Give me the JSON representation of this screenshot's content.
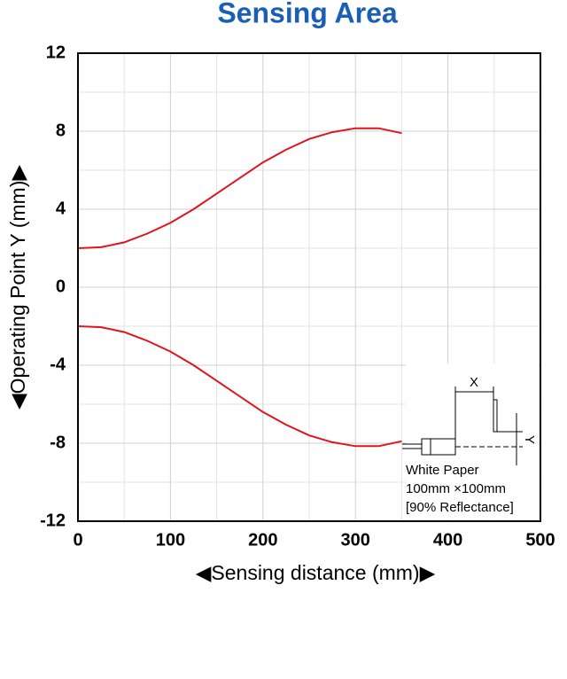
{
  "chart_data": {
    "type": "line",
    "title": "Sensing Area",
    "x_label": "◀Sensing distance (mm)▶",
    "y_label": "◀Operating Point Y (mm)▶",
    "x": [
      0,
      25,
      50,
      75,
      100,
      125,
      150,
      175,
      200,
      225,
      250,
      275,
      300,
      325,
      350
    ],
    "series": [
      {
        "color": "#e0141e",
        "values": [
          2.0,
          2.05,
          2.3,
          2.75,
          3.3,
          4.0,
          4.8,
          5.6,
          6.4,
          7.05,
          7.6,
          7.95,
          8.15,
          8.15,
          7.9
        ]
      },
      {
        "color": "#e0141e",
        "values": [
          -2.0,
          -2.05,
          -2.3,
          -2.75,
          -3.3,
          -4.0,
          -4.8,
          -5.6,
          -6.4,
          -7.05,
          -7.6,
          -7.95,
          -8.15,
          -8.15,
          -7.9
        ]
      }
    ],
    "xlim": [
      0,
      500
    ],
    "ylim": [
      -12,
      12
    ],
    "xticks": [
      0,
      100,
      200,
      300,
      400,
      500
    ],
    "yticks": [
      12,
      8,
      4,
      0,
      -4,
      -8,
      -12
    ],
    "x_minor_ticks": [
      50,
      150,
      250,
      350,
      450
    ],
    "y_minor_ticks": [
      10,
      6,
      2,
      -2,
      -6,
      -10
    ],
    "grid": true,
    "annotations": {
      "x": "X",
      "y": "Y",
      "paper": "White Paper",
      "size": "100mm ×100mm",
      "reflectance": "[90% Reflectance]"
    }
  }
}
